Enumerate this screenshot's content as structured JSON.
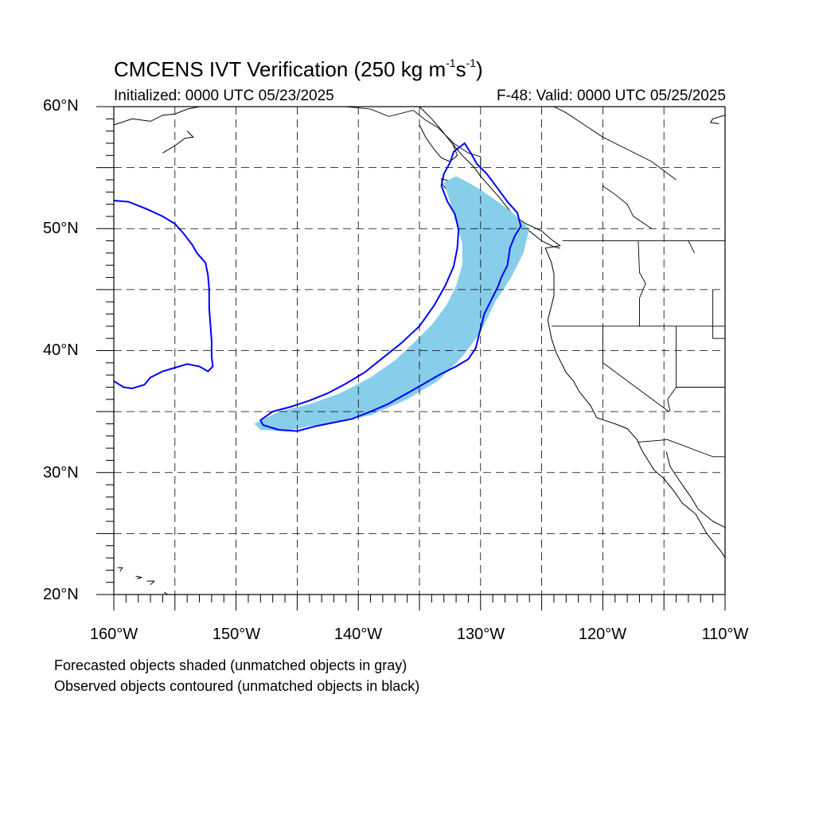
{
  "title": {
    "main": "CMCENS IVT Verification (250 kg m",
    "unit_exp1": "-1",
    "unit_mid": "s",
    "unit_exp2": "-1",
    "unit_close": ")"
  },
  "subtitle": {
    "left": "Initialized: 0000 UTC 05/23/2025",
    "right": "F-48: Valid: 0000 UTC 05/25/2025"
  },
  "lat_labels": [
    "60°N",
    "50°N",
    "40°N",
    "30°N",
    "20°N"
  ],
  "lon_labels": [
    "160°W",
    "150°W",
    "140°W",
    "130°W",
    "120°W",
    "110°W"
  ],
  "notes": [
    "Forecasted objects shaded (unmatched objects in gray)",
    "Observed objects contoured (unmatched objects in black)"
  ],
  "colors": {
    "forecast_fill": "#87ceeb",
    "observed_contour": "#0000ff",
    "coastline": "#000000",
    "grid": "#000000"
  },
  "map_extent": {
    "lon_min": -160,
    "lon_max": -110,
    "lat_min": 20,
    "lat_max": 60
  },
  "forecast_object": [
    [
      -148.5,
      34.0
    ],
    [
      -146.5,
      35.0
    ],
    [
      -144.0,
      35.6
    ],
    [
      -141.5,
      36.5
    ],
    [
      -139.0,
      37.8
    ],
    [
      -137.0,
      39.2
    ],
    [
      -135.5,
      40.6
    ],
    [
      -134.0,
      42.1
    ],
    [
      -132.8,
      43.7
    ],
    [
      -132.0,
      45.3
    ],
    [
      -131.5,
      47.0
    ],
    [
      -131.5,
      48.8
    ],
    [
      -132.0,
      50.5
    ],
    [
      -132.5,
      52.2
    ],
    [
      -133.0,
      53.8
    ],
    [
      -132.0,
      54.3
    ],
    [
      -130.5,
      53.5
    ],
    [
      -129.0,
      52.5
    ],
    [
      -127.5,
      51.4
    ],
    [
      -126.0,
      50.0
    ],
    [
      -126.5,
      48.0
    ],
    [
      -127.5,
      46.0
    ],
    [
      -128.8,
      44.0
    ],
    [
      -130.0,
      41.5
    ],
    [
      -131.5,
      39.5
    ],
    [
      -133.5,
      37.5
    ],
    [
      -136.0,
      36.0
    ],
    [
      -139.0,
      34.7
    ],
    [
      -141.5,
      34.2
    ],
    [
      -144.0,
      33.8
    ],
    [
      -146.0,
      33.4
    ],
    [
      -148.0,
      33.5
    ]
  ],
  "observed_objects": [
    [
      [
        -148.0,
        34.3
      ],
      [
        -147.0,
        35.0
      ],
      [
        -145.5,
        35.4
      ],
      [
        -144.0,
        35.9
      ],
      [
        -142.5,
        36.5
      ],
      [
        -141.0,
        37.3
      ],
      [
        -139.5,
        38.2
      ],
      [
        -138.0,
        39.4
      ],
      [
        -136.5,
        40.6
      ],
      [
        -135.0,
        42.0
      ],
      [
        -133.8,
        43.7
      ],
      [
        -132.9,
        45.3
      ],
      [
        -132.2,
        46.9
      ],
      [
        -131.9,
        48.4
      ],
      [
        -131.8,
        49.9
      ],
      [
        -132.1,
        51.2
      ],
      [
        -132.7,
        52.2
      ],
      [
        -133.2,
        53.5
      ],
      [
        -133.0,
        54.5
      ],
      [
        -132.5,
        55.4
      ],
      [
        -132.2,
        56.3
      ],
      [
        -131.3,
        57.0
      ],
      [
        -130.8,
        56.2
      ],
      [
        -130.3,
        55.3
      ],
      [
        -129.5,
        54.5
      ],
      [
        -128.6,
        53.3
      ],
      [
        -127.8,
        52.2
      ],
      [
        -127.0,
        51.3
      ],
      [
        -126.7,
        50.2
      ],
      [
        -127.2,
        49.4
      ],
      [
        -127.6,
        48.4
      ],
      [
        -127.8,
        47.0
      ],
      [
        -128.3,
        46.0
      ],
      [
        -128.6,
        45.2
      ],
      [
        -129.2,
        44.0
      ],
      [
        -129.7,
        43.0
      ],
      [
        -130.0,
        41.8
      ],
      [
        -130.4,
        40.2
      ],
      [
        -131.0,
        39.3
      ],
      [
        -132.0,
        38.7
      ],
      [
        -133.4,
        38.0
      ],
      [
        -134.6,
        37.3
      ],
      [
        -136.0,
        36.5
      ],
      [
        -137.6,
        35.6
      ],
      [
        -139.0,
        35.0
      ],
      [
        -140.5,
        34.4
      ],
      [
        -142.0,
        34.1
      ],
      [
        -143.5,
        33.8
      ],
      [
        -145.0,
        33.4
      ],
      [
        -146.5,
        33.5
      ],
      [
        -147.8,
        33.9
      ]
    ],
    [
      [
        -160.0,
        52.3
      ],
      [
        -158.8,
        52.2
      ],
      [
        -157.3,
        51.6
      ],
      [
        -156.0,
        51.0
      ],
      [
        -155.0,
        50.4
      ],
      [
        -154.3,
        49.6
      ],
      [
        -153.6,
        48.7
      ],
      [
        -153.2,
        48.0
      ],
      [
        -152.5,
        47.2
      ],
      [
        -152.3,
        46.2
      ],
      [
        -152.2,
        45.0
      ],
      [
        -152.2,
        43.5
      ],
      [
        -152.1,
        42.2
      ],
      [
        -152.0,
        40.8
      ],
      [
        -152.0,
        39.5
      ],
      [
        -151.9,
        38.7
      ],
      [
        -152.3,
        38.3
      ],
      [
        -153.0,
        38.7
      ],
      [
        -154.0,
        38.9
      ],
      [
        -155.0,
        38.6
      ],
      [
        -156.0,
        38.3
      ],
      [
        -157.0,
        37.8
      ],
      [
        -157.5,
        37.2
      ],
      [
        -158.5,
        36.9
      ],
      [
        -159.2,
        37.0
      ],
      [
        -160.0,
        37.5
      ]
    ]
  ],
  "coastlines": [
    [
      [
        -135.0,
        60.0
      ],
      [
        -134.0,
        59.0
      ],
      [
        -133.3,
        58.2
      ],
      [
        -132.5,
        57.2
      ],
      [
        -131.5,
        56.0
      ],
      [
        -130.5,
        55.0
      ],
      [
        -130.0,
        54.3
      ],
      [
        -129.3,
        53.5
      ],
      [
        -128.5,
        52.6
      ],
      [
        -127.8,
        51.7
      ],
      [
        -127.2,
        51.0
      ],
      [
        -126.3,
        50.4
      ],
      [
        -125.0,
        49.8
      ],
      [
        -124.2,
        49.1
      ],
      [
        -123.5,
        48.6
      ],
      [
        -124.7,
        48.4
      ],
      [
        -124.2,
        47.2
      ],
      [
        -124.0,
        46.3
      ],
      [
        -124.0,
        44.5
      ],
      [
        -124.5,
        42.5
      ],
      [
        -124.2,
        41.0
      ],
      [
        -123.8,
        39.8
      ],
      [
        -123.0,
        38.2
      ],
      [
        -122.4,
        37.5
      ],
      [
        -121.9,
        36.6
      ],
      [
        -121.0,
        35.5
      ],
      [
        -120.5,
        34.5
      ],
      [
        -119.0,
        34.0
      ],
      [
        -118.0,
        33.6
      ],
      [
        -117.2,
        32.7
      ],
      [
        -116.8,
        31.8
      ],
      [
        -116.3,
        31.0
      ],
      [
        -115.8,
        30.2
      ],
      [
        -115.0,
        29.5
      ],
      [
        -114.2,
        28.5
      ],
      [
        -113.5,
        27.5
      ],
      [
        -112.4,
        26.6
      ],
      [
        -111.5,
        25.0
      ],
      [
        -110.3,
        23.5
      ],
      [
        -110.0,
        23.0
      ]
    ],
    [
      [
        -114.8,
        31.7
      ],
      [
        -114.5,
        30.5
      ],
      [
        -113.5,
        29.0
      ],
      [
        -112.8,
        28.0
      ],
      [
        -112.2,
        27.0
      ],
      [
        -111.0,
        26.0
      ],
      [
        -110.0,
        25.5
      ]
    ],
    [
      [
        -160.0,
        58.5
      ],
      [
        -158.5,
        59.0
      ],
      [
        -157.0,
        58.8
      ],
      [
        -156.0,
        59.3
      ],
      [
        -155.0,
        59.4
      ],
      [
        -154.0,
        59.8
      ],
      [
        -153.0,
        60.0
      ]
    ],
    [
      [
        -156.0,
        56.2
      ],
      [
        -155.0,
        56.8
      ],
      [
        -154.2,
        57.4
      ],
      [
        -153.5,
        57.5
      ],
      [
        -154.0,
        58.0
      ]
    ],
    [
      [
        -135.0,
        58.5
      ],
      [
        -134.5,
        57.5
      ],
      [
        -133.8,
        56.5
      ],
      [
        -133.2,
        55.8
      ],
      [
        -132.5,
        55.5
      ],
      [
        -131.9,
        56.0
      ],
      [
        -132.3,
        57.0
      ]
    ],
    [
      [
        -133.2,
        54.1
      ],
      [
        -132.2,
        53.8
      ],
      [
        -131.7,
        53.0
      ],
      [
        -131.3,
        52.3
      ],
      [
        -131.9,
        52.2
      ],
      [
        -132.6,
        53.0
      ],
      [
        -133.1,
        53.6
      ],
      [
        -133.2,
        54.1
      ]
    ],
    [
      [
        -128.5,
        50.8
      ],
      [
        -127.2,
        50.3
      ],
      [
        -126.0,
        49.8
      ],
      [
        -125.0,
        49.0
      ],
      [
        -124.0,
        48.5
      ],
      [
        -123.5,
        48.4
      ]
    ],
    [
      [
        -110.0,
        59.3
      ],
      [
        -111.0,
        59.0
      ],
      [
        -111.2,
        58.7
      ],
      [
        -110.5,
        58.6
      ]
    ],
    [
      [
        -155.9,
        20.2
      ],
      [
        -155.0,
        19.6
      ],
      [
        -155.6,
        19.0
      ],
      [
        -156.0,
        19.5
      ]
    ],
    [
      [
        -157.3,
        21.1
      ],
      [
        -156.7,
        21.1
      ],
      [
        -157.0,
        20.8
      ]
    ],
    [
      [
        -158.2,
        21.5
      ],
      [
        -157.7,
        21.4
      ],
      [
        -158.1,
        21.3
      ]
    ],
    [
      [
        -159.7,
        22.2
      ],
      [
        -159.3,
        22.2
      ],
      [
        -159.5,
        21.9
      ]
    ]
  ],
  "borders": [
    [
      [
        -141.0,
        60.0
      ],
      [
        -139.0,
        59.8
      ],
      [
        -137.5,
        59.2
      ],
      [
        -135.5,
        59.7
      ],
      [
        -134.5,
        58.9
      ],
      [
        -133.5,
        58.3
      ],
      [
        -132.2,
        57.0
      ],
      [
        -131.0,
        56.2
      ],
      [
        -130.0,
        55.9
      ],
      [
        -130.0,
        54.8
      ]
    ],
    [
      [
        -123.3,
        49.0
      ],
      [
        -110.0,
        49.0
      ]
    ],
    [
      [
        -124.2,
        42.0
      ],
      [
        -110.0,
        42.0
      ]
    ],
    [
      [
        -120.0,
        42.0
      ],
      [
        -120.0,
        39.0
      ],
      [
        -114.6,
        35.0
      ]
    ],
    [
      [
        -117.1,
        49.0
      ],
      [
        -117.0,
        46.4
      ],
      [
        -116.5,
        45.5
      ],
      [
        -117.0,
        44.3
      ],
      [
        -117.0,
        42.0
      ]
    ],
    [
      [
        -114.0,
        42.0
      ],
      [
        -114.0,
        37.0
      ],
      [
        -114.7,
        36.0
      ],
      [
        -114.5,
        35.0
      ]
    ],
    [
      [
        -114.0,
        37.0
      ],
      [
        -110.0,
        37.0
      ]
    ],
    [
      [
        -117.1,
        32.5
      ],
      [
        -114.7,
        32.7
      ],
      [
        -111.0,
        31.3
      ],
      [
        -110.0,
        31.3
      ]
    ],
    [
      [
        -111.0,
        45.0
      ],
      [
        -111.0,
        41.0
      ],
      [
        -110.0,
        41.0
      ]
    ],
    [
      [
        -113.0,
        49.0
      ],
      [
        -112.5,
        48.0
      ]
    ],
    [
      [
        -114.0,
        54.0
      ],
      [
        -116.0,
        55.5
      ],
      [
        -118.0,
        56.5
      ],
      [
        -120.0,
        57.5
      ],
      [
        -121.5,
        58.5
      ],
      [
        -123.0,
        59.5
      ],
      [
        -124.0,
        60.0
      ]
    ],
    [
      [
        -120.0,
        53.5
      ],
      [
        -119.0,
        52.8
      ],
      [
        -118.0,
        52.0
      ],
      [
        -117.5,
        51.0
      ],
      [
        -116.0,
        50.0
      ]
    ]
  ]
}
